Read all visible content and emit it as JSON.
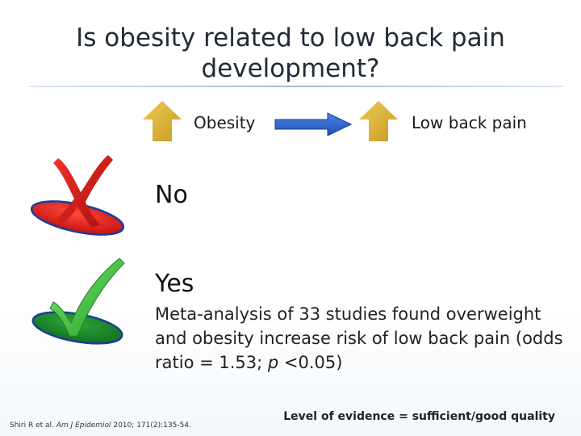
{
  "slide": {
    "title": "Is obesity related to low back pain development?",
    "diagram": {
      "cause_label": "Obesity",
      "effect_label": "Low back pain",
      "cause_icon": "up-arrow-icon",
      "effect_icon": "up-arrow-icon",
      "link_icon": "right-arrow-icon",
      "arrow_color": "#D8B23A",
      "link_color": "#2F63C9"
    },
    "answers": {
      "no": {
        "label": "No",
        "icon": "red-x-icon",
        "color": "#E32020"
      },
      "yes": {
        "label": "Yes",
        "icon": "green-check-icon",
        "color": "#1F8E2C",
        "detail_part1": "Meta-analysis of 33 studies found overweight and obesity increase risk of low back pain (odds ratio = 1.53; ",
        "detail_p": "p",
        "detail_part2": " <0.05)"
      }
    },
    "citation": {
      "authors": "Shiri R et al.",
      "journal": "Am J Epidemiol",
      "details": "2010; 171(2):135-54."
    },
    "evidence_level": "Level of evidence = sufficient/good quality"
  }
}
